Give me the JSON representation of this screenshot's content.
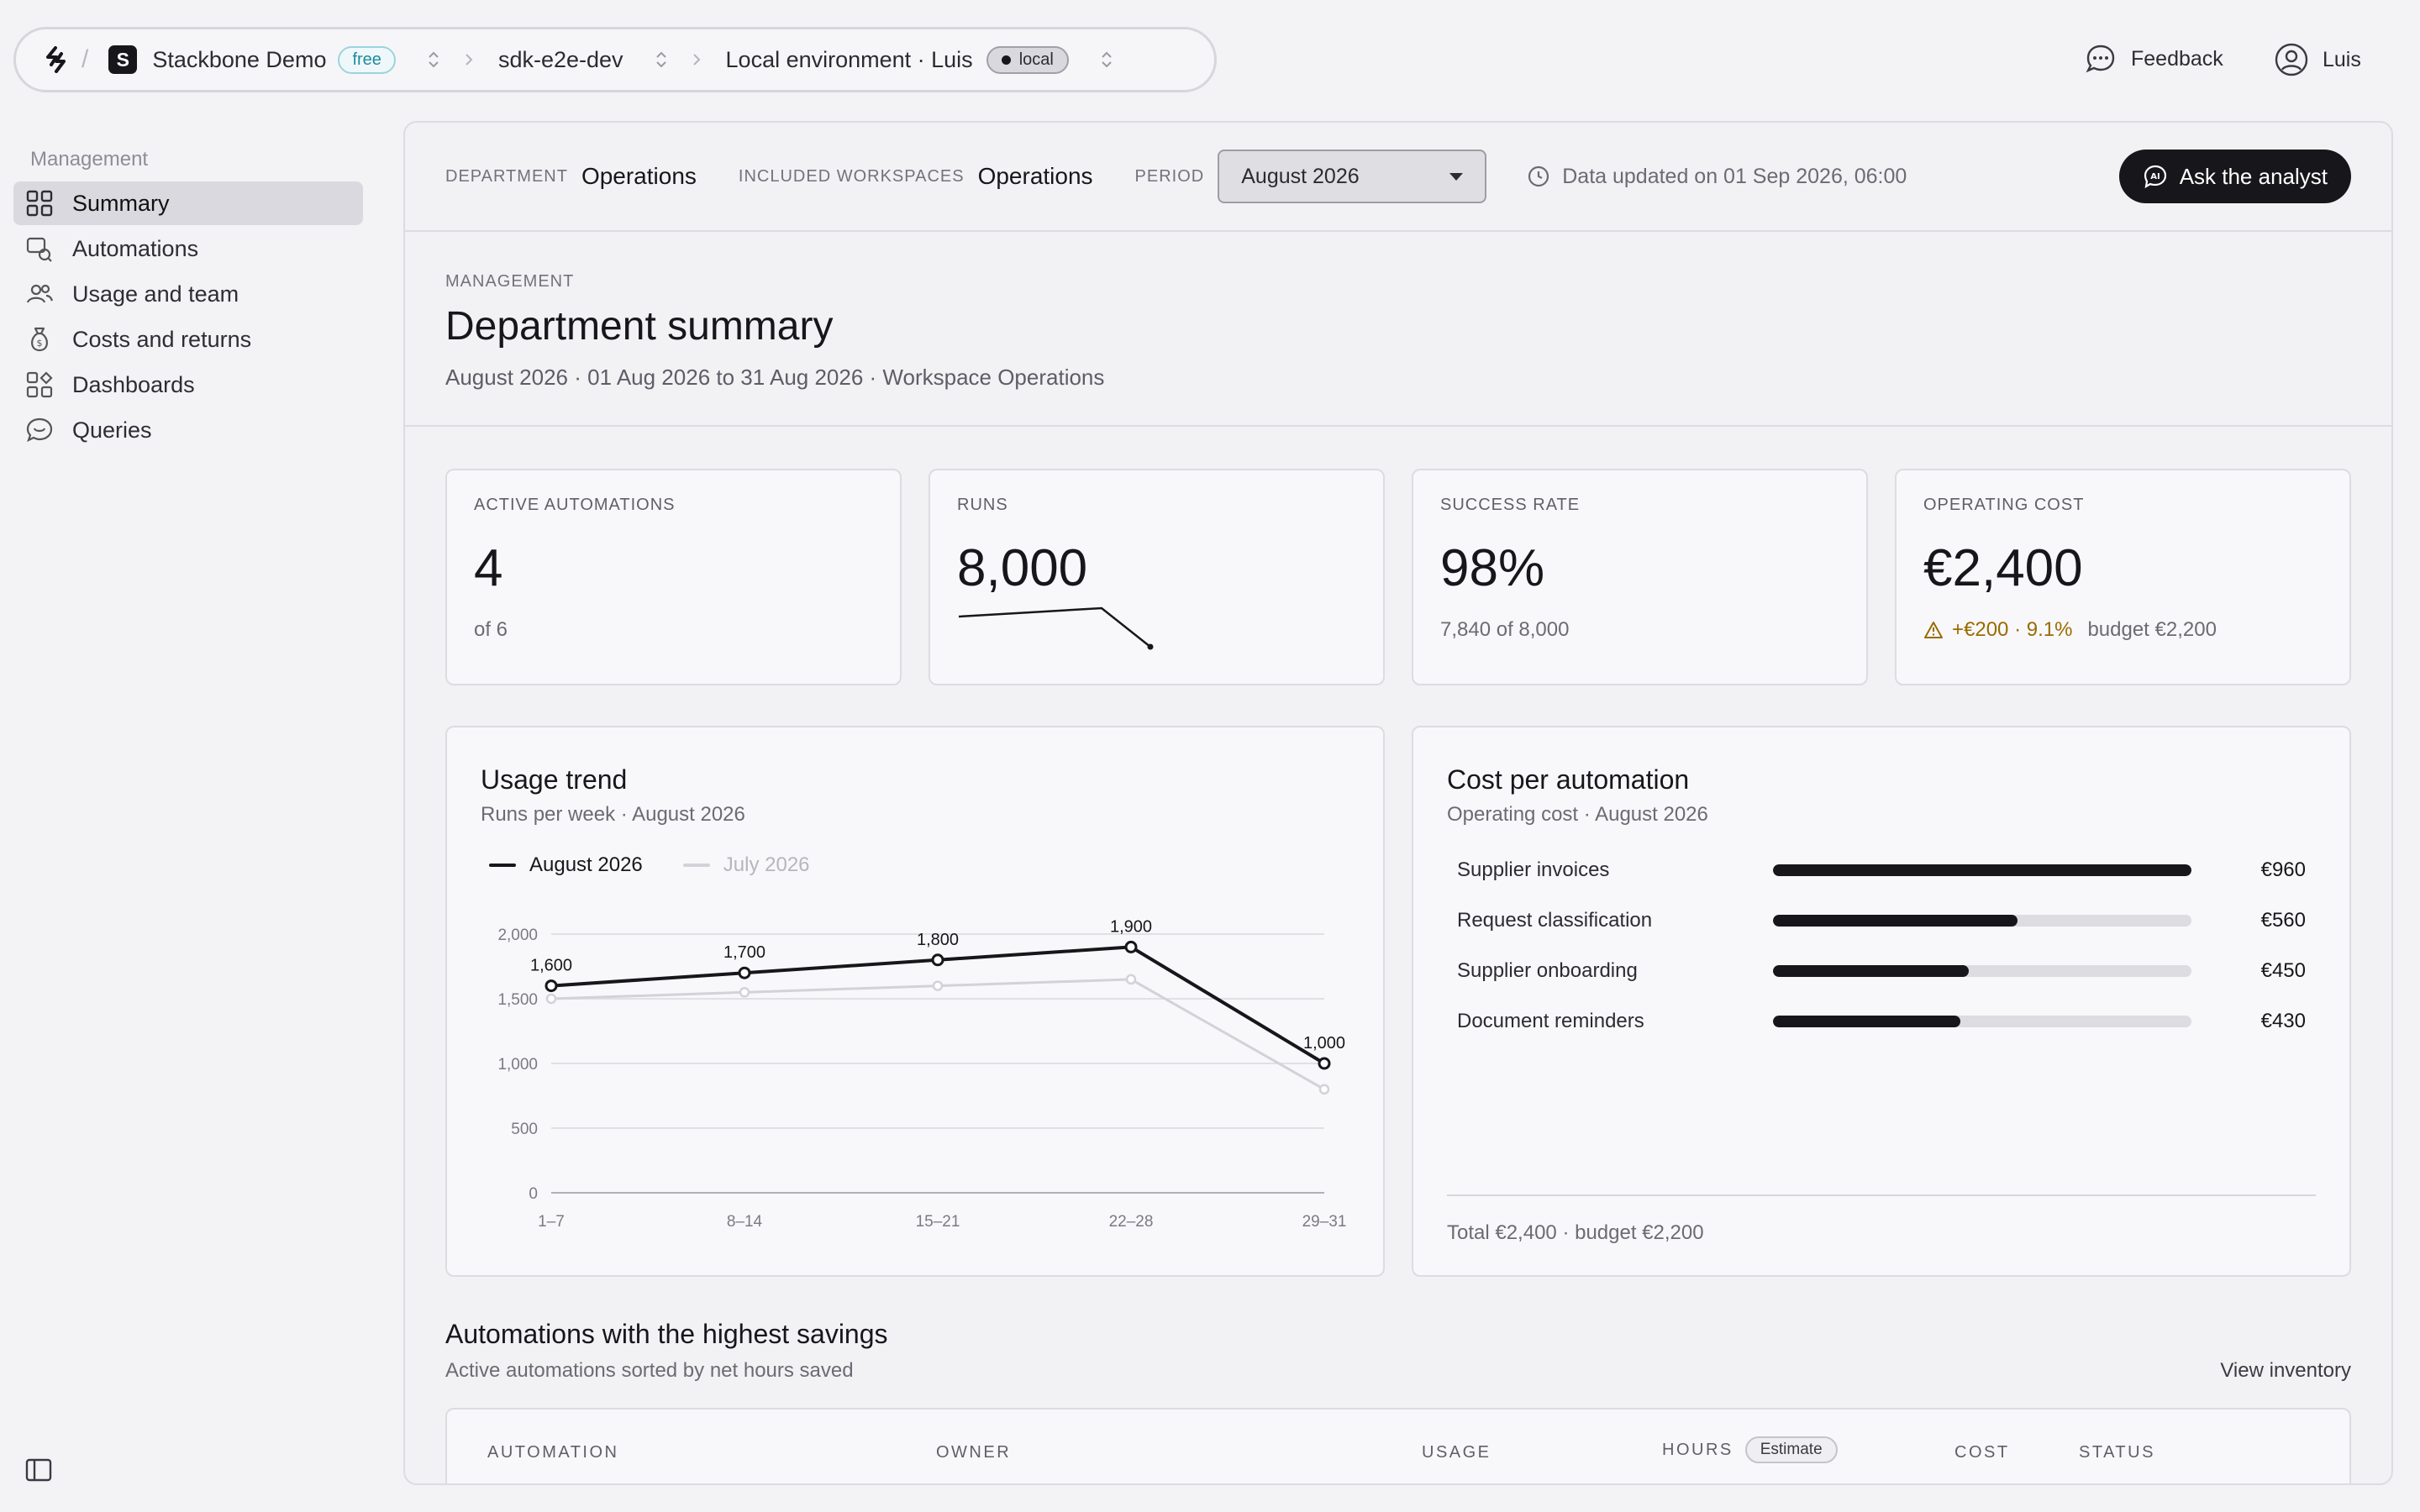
{
  "topbar": {
    "org_initial": "S",
    "org_name": "Stackbone Demo",
    "plan_badge": "free",
    "project": "sdk-e2e-dev",
    "environment": "Local environment · Luis",
    "env_badge": "local",
    "feedback": "Feedback",
    "user": "Luis"
  },
  "sidebar": {
    "section": "Management",
    "items": [
      {
        "label": "Summary",
        "icon": "grid-icon"
      },
      {
        "label": "Automations",
        "icon": "automation-icon"
      },
      {
        "label": "Usage and team",
        "icon": "users-icon"
      },
      {
        "label": "Costs and returns",
        "icon": "money-bag-icon"
      },
      {
        "label": "Dashboards",
        "icon": "dashboard-icon"
      },
      {
        "label": "Queries",
        "icon": "chat-icon"
      }
    ]
  },
  "filters": {
    "department_label": "DEPARTMENT",
    "department": "Operations",
    "workspaces_label": "INCLUDED WORKSPACES",
    "workspaces": "Operations",
    "period_label": "PERIOD",
    "period": "August 2026",
    "updated": "Data updated on 01 Sep 2026, 06:00",
    "ask_button": "Ask the analyst"
  },
  "header": {
    "crumb": "MANAGEMENT",
    "title": "Department summary",
    "subtitle": "August 2026 · 01 Aug 2026 to 31 Aug 2026 · Workspace Operations"
  },
  "kpis": {
    "active": {
      "label": "ACTIVE AUTOMATIONS",
      "value": "4",
      "sub": "of 6"
    },
    "runs": {
      "label": "RUNS",
      "value": "8,000"
    },
    "success": {
      "label": "SUCCESS RATE",
      "value": "98%",
      "sub": "7,840 of 8,000"
    },
    "cost": {
      "label": "OPERATING COST",
      "value": "€2,400",
      "warning": "+€200 · 9.1%",
      "budget": "budget €2,200"
    }
  },
  "usage": {
    "title": "Usage trend",
    "subtitle": "Runs per week · August 2026"
  },
  "chart_data": {
    "type": "line",
    "categories": [
      "1–7",
      "8–14",
      "15–21",
      "22–28",
      "29–31"
    ],
    "series": [
      {
        "name": "August 2026",
        "values": [
          1600,
          1700,
          1800,
          1900,
          1000
        ],
        "color": "#17171b",
        "labels": [
          "1,600",
          "1,700",
          "1,800",
          "1,900",
          "1,000"
        ]
      },
      {
        "name": "July 2026",
        "values": [
          1500,
          1550,
          1600,
          1650,
          800
        ],
        "color": "#d2d2d8"
      }
    ],
    "y_ticks": [
      0,
      500,
      1000,
      1500,
      2000
    ],
    "y_tick_labels": [
      "0",
      "500",
      "1,000",
      "1,500",
      "2,000"
    ],
    "ylim": [
      0,
      2000
    ],
    "grid": true,
    "legend": "top-left"
  },
  "costs": {
    "title": "Cost per automation",
    "subtitle": "Operating cost · August 2026",
    "rows": [
      {
        "name": "Supplier invoices",
        "amount": 960,
        "label": "€960"
      },
      {
        "name": "Request classification",
        "amount": 560,
        "label": "€560"
      },
      {
        "name": "Supplier onboarding",
        "amount": 450,
        "label": "€450"
      },
      {
        "name": "Document reminders",
        "amount": 430,
        "label": "€430"
      }
    ],
    "max": 960,
    "total": "Total €2,400 · budget €2,200"
  },
  "savings": {
    "title": "Automations with the highest savings",
    "subtitle": "Active automations sorted by net hours saved",
    "view_link": "View inventory",
    "columns": {
      "automation": "AUTOMATION",
      "owner": "OWNER",
      "usage": "USAGE",
      "hours": "HOURS",
      "estimate": "Estimate",
      "cost": "COST",
      "status": "STATUS"
    }
  },
  "colors": {
    "accent": "#17171b",
    "warning": "#9a6b00",
    "free_badge": "#1e8a9c"
  }
}
